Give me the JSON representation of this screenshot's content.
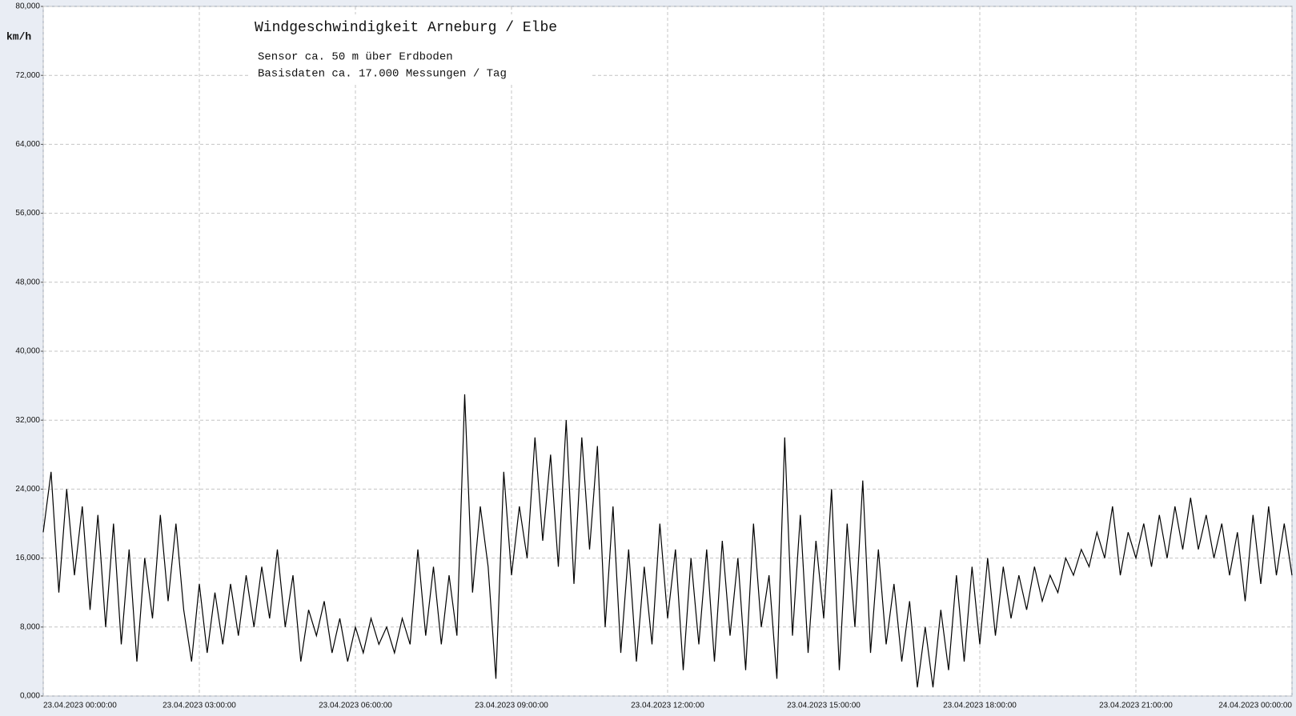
{
  "chart_data": {
    "type": "line",
    "title": "Windgeschwindigkeit  Arneburg / Elbe",
    "subtitle": [
      "Sensor ca. 50 m über Erdboden",
      "Basisdaten ca. 17.000 Messungen / Tag"
    ],
    "y_label": "km/h",
    "xlim": [
      0,
      24
    ],
    "ylim": [
      0,
      80
    ],
    "xticks": [
      {
        "value": 0,
        "label": "23.04.2023  00:00:00"
      },
      {
        "value": 3,
        "label": "23.04.2023  03:00:00"
      },
      {
        "value": 6,
        "label": "23.04.2023  06:00:00"
      },
      {
        "value": 9,
        "label": "23.04.2023  09:00:00"
      },
      {
        "value": 12,
        "label": "23.04.2023  12:00:00"
      },
      {
        "value": 15,
        "label": "23.04.2023  15:00:00"
      },
      {
        "value": 18,
        "label": "23.04.2023  18:00:00"
      },
      {
        "value": 21,
        "label": "23.04.2023  21:00:00"
      },
      {
        "value": 24,
        "label": "24.04.2023  00:00:00"
      }
    ],
    "yticks": [
      {
        "value": 0,
        "label": "0,000"
      },
      {
        "value": 8,
        "label": "8,000"
      },
      {
        "value": 16,
        "label": "16,000"
      },
      {
        "value": 24,
        "label": "24,000"
      },
      {
        "value": 32,
        "label": "32,000"
      },
      {
        "value": 40,
        "label": "40,000"
      },
      {
        "value": 48,
        "label": "48,000"
      },
      {
        "value": 56,
        "label": "56,000"
      },
      {
        "value": 64,
        "label": "64,000"
      },
      {
        "value": 72,
        "label": "72,000"
      },
      {
        "value": 80,
        "label": "80,000"
      }
    ],
    "grid": true,
    "x": [
      0,
      0.15,
      0.3,
      0.45,
      0.6,
      0.75,
      0.9,
      1.05,
      1.2,
      1.35,
      1.5,
      1.65,
      1.8,
      1.95,
      2.1,
      2.25,
      2.4,
      2.55,
      2.7,
      2.85,
      3,
      3.15,
      3.3,
      3.45,
      3.6,
      3.75,
      3.9,
      4.05,
      4.2,
      4.35,
      4.5,
      4.65,
      4.8,
      4.95,
      5.1,
      5.25,
      5.4,
      5.55,
      5.7,
      5.85,
      6,
      6.15,
      6.3,
      6.45,
      6.6,
      6.75,
      6.9,
      7.05,
      7.2,
      7.35,
      7.5,
      7.65,
      7.8,
      7.95,
      8.1,
      8.25,
      8.4,
      8.55,
      8.7,
      8.85,
      9,
      9.15,
      9.3,
      9.45,
      9.6,
      9.75,
      9.9,
      10.05,
      10.2,
      10.35,
      10.5,
      10.65,
      10.8,
      10.95,
      11.1,
      11.25,
      11.4,
      11.55,
      11.7,
      11.85,
      12,
      12.15,
      12.3,
      12.45,
      12.6,
      12.75,
      12.9,
      13.05,
      13.2,
      13.35,
      13.5,
      13.65,
      13.8,
      13.95,
      14.1,
      14.25,
      14.4,
      14.55,
      14.7,
      14.85,
      15,
      15.15,
      15.3,
      15.45,
      15.6,
      15.75,
      15.9,
      16.05,
      16.2,
      16.35,
      16.5,
      16.65,
      16.8,
      16.95,
      17.1,
      17.25,
      17.4,
      17.55,
      17.7,
      17.85,
      18,
      18.15,
      18.3,
      18.45,
      18.6,
      18.75,
      18.9,
      19.05,
      19.2,
      19.35,
      19.5,
      19.65,
      19.8,
      19.95,
      20.1,
      20.25,
      20.4,
      20.55,
      20.7,
      20.85,
      21,
      21.15,
      21.3,
      21.45,
      21.6,
      21.75,
      21.9,
      22.05,
      22.2,
      22.35,
      22.5,
      22.65,
      22.8,
      22.95,
      23.1,
      23.25,
      23.4,
      23.55,
      23.7,
      23.85,
      24
    ],
    "series": [
      {
        "color": "#000000",
        "values": [
          19,
          26,
          12,
          24,
          14,
          22,
          10,
          21,
          8,
          20,
          6,
          17,
          4,
          16,
          9,
          21,
          11,
          20,
          10,
          4,
          13,
          5,
          12,
          6,
          13,
          7,
          14,
          8,
          15,
          9,
          17,
          8,
          14,
          4,
          10,
          7,
          11,
          5,
          9,
          4,
          8,
          5,
          9,
          6,
          8,
          5,
          9,
          6,
          17,
          7,
          15,
          6,
          14,
          7,
          35,
          12,
          22,
          15,
          2,
          26,
          14,
          22,
          16,
          30,
          18,
          28,
          15,
          32,
          13,
          30,
          17,
          29,
          8,
          22,
          5,
          17,
          4,
          15,
          6,
          20,
          9,
          17,
          3,
          16,
          6,
          17,
          4,
          18,
          7,
          16,
          3,
          20,
          8,
          14,
          2,
          30,
          7,
          21,
          5,
          18,
          9,
          24,
          3,
          20,
          8,
          25,
          5,
          17,
          6,
          13,
          4,
          11,
          1,
          8,
          1,
          10,
          3,
          14,
          4,
          15,
          6,
          16,
          7,
          15,
          9,
          14,
          10,
          15,
          11,
          14,
          12,
          16,
          14,
          17,
          15,
          19,
          16,
          22,
          14,
          19,
          16,
          20,
          15,
          21,
          16,
          22,
          17,
          23,
          17,
          21,
          16,
          20,
          14,
          19,
          11,
          21,
          13,
          22,
          14,
          20,
          14
        ]
      }
    ]
  }
}
